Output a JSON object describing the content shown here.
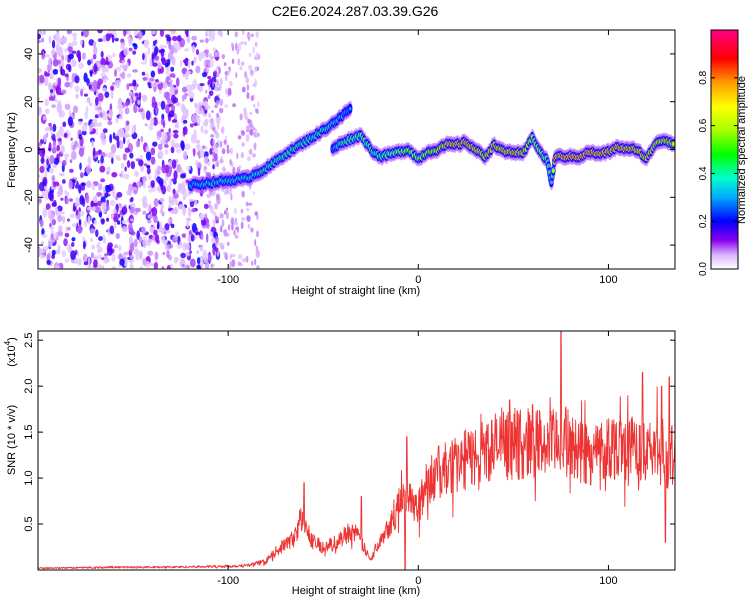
{
  "title": "C2E6.2024.287.03.39.G26",
  "chart_data": [
    {
      "type": "heatmap",
      "xlabel": "Height of straight line (km)",
      "ylabel": "Frequency (Hz)",
      "xlim": [
        -200,
        135
      ],
      "ylim": [
        -50,
        50
      ],
      "x_ticks": [
        {
          "value": -100,
          "label": "-100"
        },
        {
          "value": 0,
          "label": "0"
        },
        {
          "value": 100,
          "label": "100"
        }
      ],
      "y_ticks": [
        {
          "value": -40,
          "label": "-40"
        },
        {
          "value": -20,
          "label": "-20"
        },
        {
          "value": 0,
          "label": "0"
        },
        {
          "value": 20,
          "label": "20"
        },
        {
          "value": 40,
          "label": "40"
        }
      ],
      "colorbar": {
        "label": "Normalized spectral amplitude",
        "range": [
          0,
          1
        ],
        "ticks": [
          {
            "value": 0.0,
            "label": "0.0"
          },
          {
            "value": 0.2,
            "label": "0.2"
          },
          {
            "value": 0.4,
            "label": "0.4"
          },
          {
            "value": 0.6,
            "label": "0.6"
          },
          {
            "value": 0.8,
            "label": "0.8"
          }
        ]
      },
      "ridge": {
        "x": [
          -120,
          -110,
          -100,
          -90,
          -80,
          -70,
          -60,
          -50,
          -40,
          -35,
          -45,
          -40,
          -30,
          -25,
          -20,
          -15,
          -10,
          -5,
          0,
          5,
          10,
          15,
          20,
          25,
          30,
          35,
          40,
          45,
          50,
          55,
          60,
          65,
          68,
          70,
          72,
          75,
          80,
          85,
          90,
          95,
          100,
          105,
          110,
          115,
          120,
          125,
          130,
          135
        ],
        "y": [
          -15,
          -14,
          -13,
          -12,
          -8,
          -2,
          3,
          8,
          14,
          18,
          0,
          3,
          6,
          0,
          -3,
          -2,
          -1,
          0,
          -4,
          -1,
          0,
          2,
          2,
          3,
          0,
          -3,
          2,
          -1,
          -1,
          -2,
          5,
          -2,
          -5,
          -14,
          -3,
          -3,
          -3,
          -3,
          -1,
          -2,
          -1,
          1,
          0,
          0,
          -4,
          3,
          4,
          2
        ],
        "amplitude": [
          0.35,
          0.4,
          0.4,
          0.4,
          0.45,
          0.5,
          0.45,
          0.45,
          0.35,
          0.3,
          0.3,
          0.5,
          0.55,
          0.5,
          0.5,
          0.55,
          0.6,
          0.65,
          0.6,
          0.7,
          0.75,
          0.8,
          0.85,
          0.85,
          0.8,
          0.75,
          0.8,
          0.8,
          0.85,
          0.8,
          0.6,
          0.6,
          0.5,
          0.35,
          0.85,
          0.9,
          0.9,
          0.9,
          0.9,
          0.85,
          0.85,
          0.85,
          0.85,
          0.8,
          0.8,
          0.75,
          0.8,
          0.7
        ]
      }
    },
    {
      "type": "line",
      "xlabel": "Height of straight line (km)",
      "ylabel": "SNR (10 * v/v)",
      "y_multiplier_label": "(x10",
      "y_multiplier_exp": "4",
      "y_multiplier_close": ")",
      "xlim": [
        -200,
        135
      ],
      "ylim": [
        0,
        26000
      ],
      "x_ticks": [
        {
          "value": -100,
          "label": "-100"
        },
        {
          "value": 0,
          "label": "0"
        },
        {
          "value": 100,
          "label": "100"
        }
      ],
      "y_ticks": [
        {
          "value": 5000,
          "label": "0.5"
        },
        {
          "value": 10000,
          "label": "1.0"
        },
        {
          "value": 15000,
          "label": "1.5"
        },
        {
          "value": 20000,
          "label": "2.0"
        },
        {
          "value": 25000,
          "label": "2.5"
        }
      ],
      "series": [
        {
          "color": "#ee3333",
          "x": [
            -200,
            -180,
            -160,
            -140,
            -120,
            -100,
            -90,
            -80,
            -75,
            -70,
            -65,
            -62,
            -60,
            -58,
            -55,
            -50,
            -45,
            -40,
            -35,
            -30,
            -25,
            -20,
            -15,
            -10,
            -5,
            0,
            5,
            10,
            20,
            30,
            40,
            50,
            60,
            70,
            75,
            80,
            90,
            100,
            110,
            120,
            125,
            130,
            135
          ],
          "y": [
            200,
            250,
            300,
            300,
            350,
            400,
            500,
            900,
            2000,
            2800,
            3500,
            5500,
            5000,
            4000,
            3000,
            2500,
            2800,
            3500,
            4500,
            3000,
            1000,
            3500,
            5000,
            7000,
            8500,
            6500,
            10000,
            10500,
            11500,
            12500,
            13500,
            13500,
            14000,
            13500,
            14500,
            13500,
            12500,
            13500,
            13500,
            12500,
            13500,
            12000,
            13000
          ],
          "spikes": [
            {
              "x": 75,
              "y": 26000
            },
            {
              "x": 118,
              "y": 21500
            },
            {
              "x": 132,
              "y": 21000
            },
            {
              "x": 128,
              "y": 20000
            },
            {
              "x": 48,
              "y": 18500
            },
            {
              "x": 60,
              "y": 18000
            },
            {
              "x": -6,
              "y": 14500
            },
            {
              "x": -60,
              "y": 9500
            },
            {
              "x": -30,
              "y": 8000
            }
          ],
          "dips": [
            {
              "x": -7,
              "y": 0
            },
            {
              "x": 130,
              "y": 3000
            }
          ]
        }
      ]
    }
  ]
}
